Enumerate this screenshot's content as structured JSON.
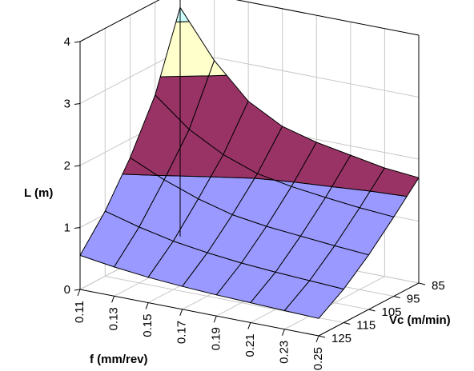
{
  "chart_data": {
    "type": "surface",
    "xlabel": "f (mm/rev)",
    "ylabel": "Vc (m/min)",
    "zlabel": "L (m)",
    "f_ticks": [
      "0.11",
      "0.13",
      "0.15",
      "0.17",
      "0.19",
      "0.21",
      "0.23",
      "0.25"
    ],
    "vc_ticks": [
      "85",
      "95",
      "105",
      "115",
      "125"
    ],
    "z_ticks": [
      "0",
      "1",
      "2",
      "3",
      "4"
    ],
    "f": [
      0.11,
      0.13,
      0.15,
      0.17,
      0.19,
      0.21,
      0.23,
      0.25
    ],
    "vc": [
      85,
      95,
      105,
      115,
      125
    ],
    "zlim": [
      0,
      4
    ],
    "band_breaks": [
      1.5,
      2.75,
      3.5
    ],
    "band_colors": [
      "#9999ff",
      "#993366",
      "#ffffcc",
      "#ccffff"
    ],
    "L": [
      [
        3.7,
        2.95,
        2.4,
        2.1,
        1.95,
        1.85,
        1.75,
        1.7
      ],
      [
        2.5,
        2.05,
        1.75,
        1.55,
        1.45,
        1.38,
        1.32,
        1.28
      ],
      [
        1.7,
        1.45,
        1.25,
        1.1,
        1.02,
        0.97,
        0.92,
        0.88
      ],
      [
        1.05,
        0.9,
        0.78,
        0.7,
        0.64,
        0.6,
        0.57,
        0.54
      ],
      [
        0.55,
        0.47,
        0.41,
        0.37,
        0.34,
        0.32,
        0.3,
        0.28
      ]
    ],
    "grid": true
  }
}
